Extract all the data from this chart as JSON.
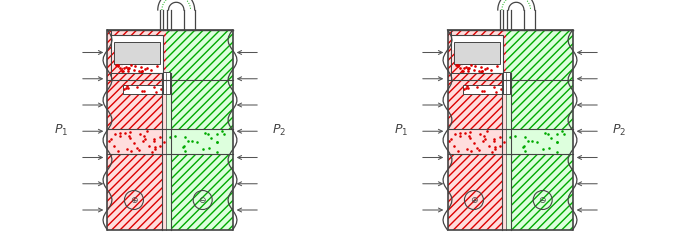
{
  "bg_color": "#ffffff",
  "red_color": "#dd0000",
  "green_color": "#00aa00",
  "dark_color": "#444444",
  "red_fill": "#ffdddd",
  "green_fill": "#ddffdd",
  "white": "#ffffff",
  "gray_fill": "#d8d8d8",
  "arrow_color": "#555555"
}
